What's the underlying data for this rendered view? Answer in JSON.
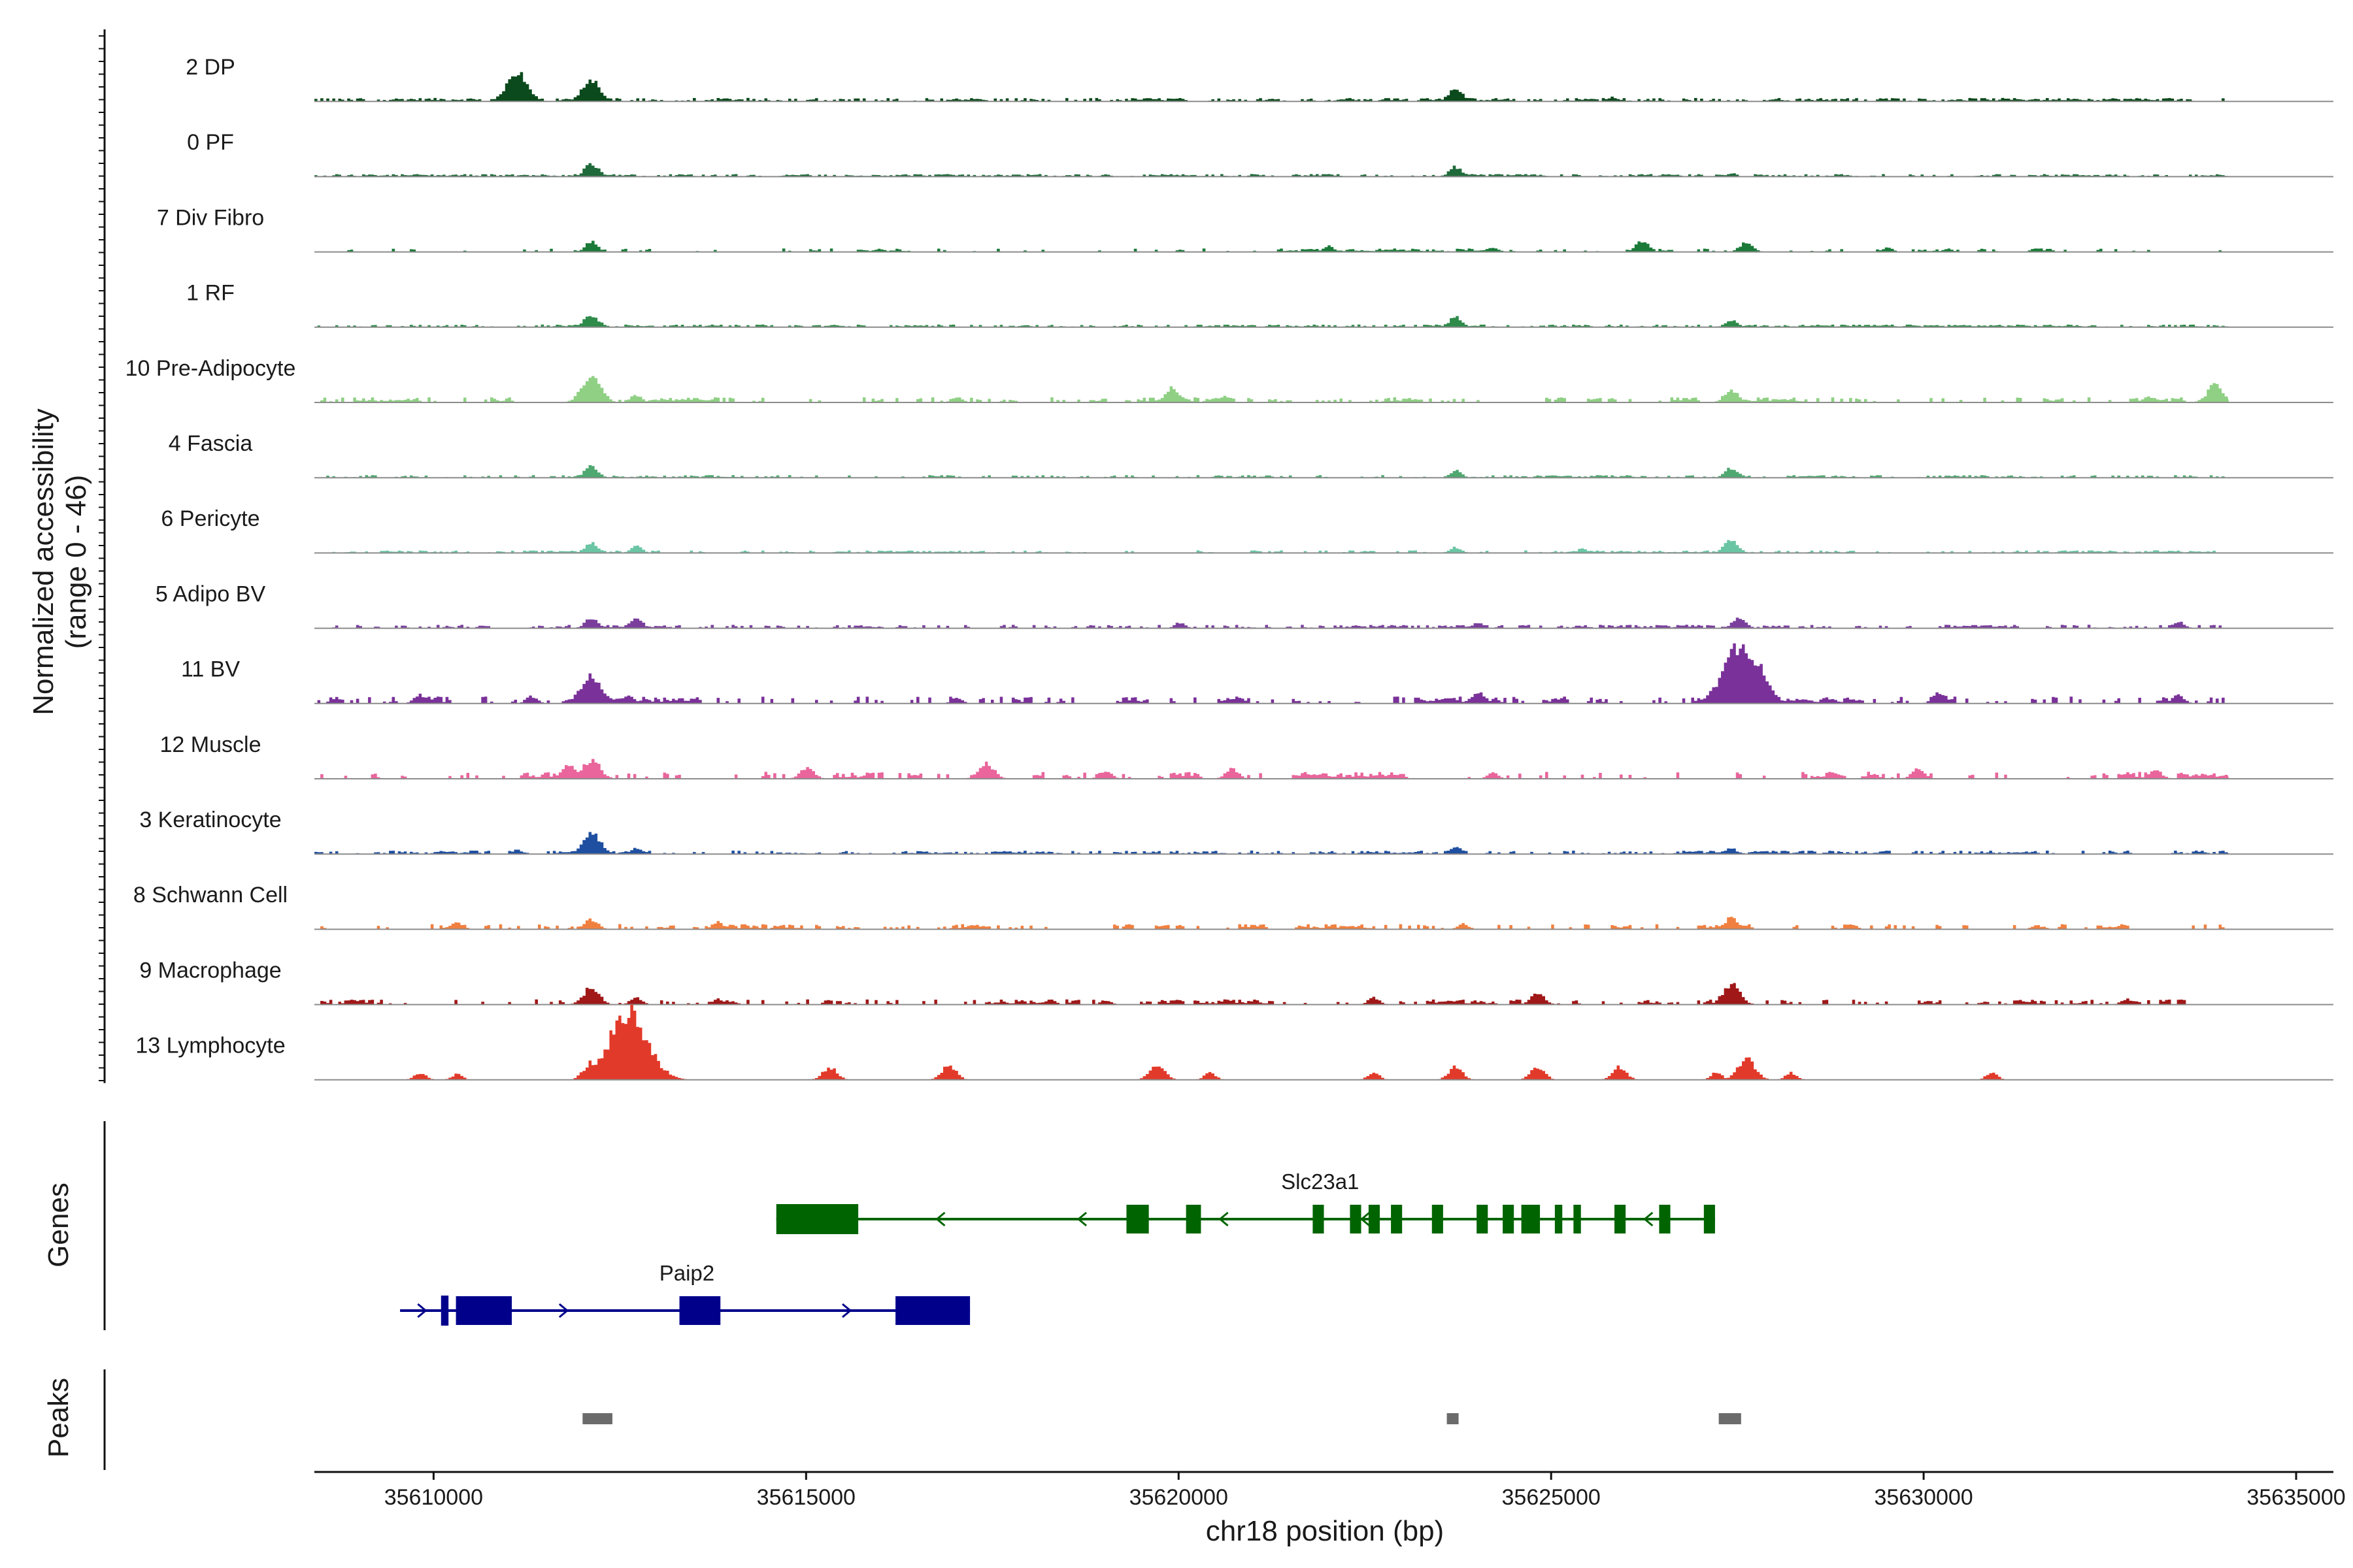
{
  "chart_data": {
    "type": "area",
    "subtype": "genome-browser-coverage-tracks",
    "title": "",
    "ylabel_line1": "Normalized accessibility",
    "ylabel_line2": "(range 0 - 46)",
    "yrange": [
      0,
      46
    ],
    "xlabel": "chr18 position (bp)",
    "xlim": [
      35608400,
      35635500
    ],
    "xticks": [
      35610000,
      35615000,
      35620000,
      35625000,
      35630000,
      35635000
    ],
    "xtick_labels": [
      "35610000",
      "35615000",
      "35620000",
      "35625000",
      "35630000",
      "35635000"
    ],
    "grid": false,
    "coverage_range_bp": [
      35608400,
      35634100
    ],
    "series": [
      {
        "name": "2 DP",
        "color": "#0b4a1c",
        "peaks": [
          [
            35611100,
            40
          ],
          [
            35612100,
            30
          ],
          [
            35623700,
            18
          ],
          [
            35625800,
            6
          ],
          [
            35617000,
            4
          ],
          [
            35628000,
            4
          ],
          [
            35632000,
            4
          ]
        ],
        "noise": 4,
        "coverage": 0.95
      },
      {
        "name": "0 PF",
        "color": "#1f6a3a",
        "peaks": [
          [
            35612100,
            18
          ],
          [
            35623700,
            14
          ],
          [
            35621000,
            4
          ],
          [
            35627400,
            5
          ]
        ],
        "noise": 3,
        "coverage": 0.85
      },
      {
        "name": "7 Div Fibro",
        "color": "#1a7a38",
        "peaks": [
          [
            35612100,
            14
          ],
          [
            35626200,
            16
          ],
          [
            35627600,
            14
          ],
          [
            35622000,
            8
          ],
          [
            35624200,
            7
          ],
          [
            35629500,
            6
          ],
          [
            35631500,
            6
          ]
        ],
        "noise": 4,
        "coverage": 0.3
      },
      {
        "name": "1 RF",
        "color": "#2e8b4a",
        "peaks": [
          [
            35612100,
            18
          ],
          [
            35623700,
            14
          ],
          [
            35627400,
            10
          ]
        ],
        "noise": 3,
        "coverage": 0.75
      },
      {
        "name": "10 Pre-Adipocyte",
        "color": "#8fd084",
        "peaks": [
          [
            35612100,
            35
          ],
          [
            35633900,
            25
          ],
          [
            35619900,
            20
          ],
          [
            35627400,
            18
          ],
          [
            35612700,
            10
          ],
          [
            35620600,
            10
          ],
          [
            35617000,
            8
          ],
          [
            35633000,
            8
          ]
        ],
        "noise": 6,
        "coverage": 0.45
      },
      {
        "name": "4 Fascia",
        "color": "#4fa870",
        "peaks": [
          [
            35612100,
            16
          ],
          [
            35623700,
            10
          ],
          [
            35627400,
            14
          ]
        ],
        "noise": 3,
        "coverage": 0.6
      },
      {
        "name": "6 Pericyte",
        "color": "#6ac5a4",
        "peaks": [
          [
            35612100,
            14
          ],
          [
            35627400,
            18
          ],
          [
            35612700,
            10
          ],
          [
            35623700,
            8
          ],
          [
            35625400,
            6
          ]
        ],
        "noise": 3,
        "coverage": 0.55
      },
      {
        "name": "5 Adipo BV",
        "color": "#7a3f9d",
        "peaks": [
          [
            35612100,
            14
          ],
          [
            35612700,
            14
          ],
          [
            35627500,
            15
          ],
          [
            35624000,
            8
          ],
          [
            35620000,
            8
          ],
          [
            35633400,
            10
          ]
        ],
        "noise": 4,
        "coverage": 0.6
      },
      {
        "name": "11 BV",
        "color": "#7a3199",
        "peaks": [
          [
            35627500,
            78
          ],
          [
            35627700,
            58
          ],
          [
            35612100,
            40
          ],
          [
            35624000,
            16
          ],
          [
            35630200,
            16
          ],
          [
            35633400,
            12
          ],
          [
            35612600,
            10
          ],
          [
            35609800,
            12
          ],
          [
            35611300,
            10
          ],
          [
            35617000,
            8
          ]
        ],
        "noise": 8,
        "coverage": 0.4
      },
      {
        "name": "12 Muscle",
        "color": "#e9659c",
        "peaks": [
          [
            35612100,
            28
          ],
          [
            35611800,
            20
          ],
          [
            35615000,
            16
          ],
          [
            35617400,
            22
          ],
          [
            35620700,
            14
          ],
          [
            35629900,
            14
          ],
          [
            35633100,
            12
          ],
          [
            35619000,
            12
          ],
          [
            35624200,
            8
          ]
        ],
        "noise": 8,
        "coverage": 0.35
      },
      {
        "name": "3 Keratinocyte",
        "color": "#1f4fa0",
        "peaks": [
          [
            35612100,
            30
          ],
          [
            35612700,
            8
          ],
          [
            35623700,
            10
          ],
          [
            35627400,
            8
          ],
          [
            35611100,
            6
          ]
        ],
        "noise": 4,
        "coverage": 0.7
      },
      {
        "name": "8 Schwann Cell",
        "color": "#f08040",
        "peaks": [
          [
            35627400,
            16
          ],
          [
            35612100,
            14
          ],
          [
            35610300,
            10
          ],
          [
            35613800,
            10
          ],
          [
            35629000,
            8
          ],
          [
            35623800,
            8
          ],
          [
            35617200,
            6
          ],
          [
            35631500,
            6
          ]
        ],
        "noise": 6,
        "coverage": 0.45
      },
      {
        "name": "9 Macrophage",
        "color": "#a01818",
        "peaks": [
          [
            35612100,
            24
          ],
          [
            35627400,
            28
          ],
          [
            35624800,
            16
          ],
          [
            35612700,
            10
          ],
          [
            35622600,
            10
          ],
          [
            35632700,
            8
          ],
          [
            35619000,
            6
          ],
          [
            35613800,
            8
          ]
        ],
        "noise": 6,
        "coverage": 0.4
      },
      {
        "name": "13 Lymphocyte",
        "color": "#e23a2a",
        "peaks": [
          [
            35612600,
            96
          ],
          [
            35627600,
            30
          ],
          [
            35627200,
            10
          ],
          [
            35612100,
            24
          ],
          [
            35619700,
            22
          ],
          [
            35615300,
            18
          ],
          [
            35616900,
            20
          ],
          [
            35623700,
            18
          ],
          [
            35624800,
            18
          ],
          [
            35625900,
            18
          ],
          [
            35620400,
            10
          ],
          [
            35609800,
            10
          ],
          [
            35610300,
            8
          ],
          [
            35622600,
            10
          ],
          [
            35628200,
            10
          ],
          [
            35630900,
            10
          ]
        ],
        "noise": 0,
        "coverage": 0.0
      }
    ],
    "genes_label": "Genes",
    "genes": [
      {
        "name": "Slc23a1",
        "color": "#006400",
        "strand": "-",
        "start": 35614600,
        "end": 35627200,
        "exons": [
          [
            35614600,
            35615700,
            "utr"
          ],
          [
            35619300,
            35619600,
            "cds"
          ],
          [
            35620100,
            35620300,
            "cds"
          ],
          [
            35621800,
            35621950,
            "cds"
          ],
          [
            35622300,
            35622450,
            "cds"
          ],
          [
            35622550,
            35622700,
            "cds"
          ],
          [
            35622850,
            35623000,
            "cds"
          ],
          [
            35623400,
            35623550,
            "cds"
          ],
          [
            35624000,
            35624150,
            "cds"
          ],
          [
            35624350,
            35624500,
            "cds"
          ],
          [
            35624600,
            35624850,
            "cds"
          ],
          [
            35625050,
            35625150,
            "cds"
          ],
          [
            35625300,
            35625400,
            "cds"
          ],
          [
            35625850,
            35626000,
            "cds"
          ],
          [
            35626450,
            35626600,
            "cds"
          ],
          [
            35627050,
            35627200,
            "cds"
          ]
        ]
      },
      {
        "name": "Paip2",
        "color": "#00008b",
        "strand": "+",
        "start": 35609550,
        "end": 35617200,
        "exons": [
          [
            35610100,
            35610200,
            "utr"
          ],
          [
            35610300,
            35611050,
            "cds"
          ],
          [
            35613300,
            35613850,
            "cds"
          ],
          [
            35616200,
            35617200,
            "cds"
          ]
        ]
      }
    ],
    "peaks_label": "Peaks",
    "peaks": [
      [
        35612000,
        35612400
      ],
      [
        35623600,
        35623750
      ],
      [
        35627250,
        35627550
      ]
    ]
  }
}
